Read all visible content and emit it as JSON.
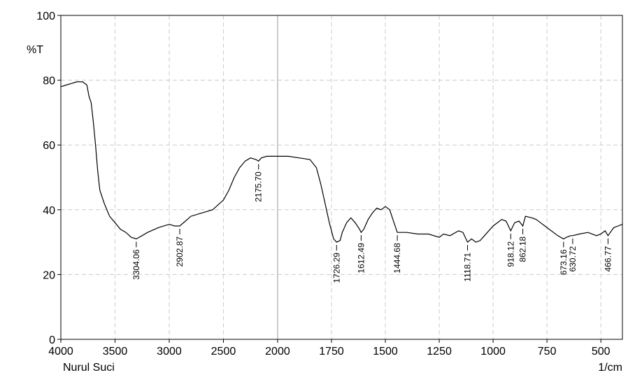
{
  "chart_data": {
    "type": "line",
    "y_label": "%T",
    "x_label": "1/cm",
    "author": "Nurul Suci",
    "xlim": [
      4000,
      400
    ],
    "x_break": 2000,
    "xticks": [
      4000,
      3500,
      3000,
      2500,
      2000,
      1750,
      1500,
      1250,
      1000,
      750,
      500
    ],
    "ylim": [
      0,
      100
    ],
    "yticks": [
      0,
      20,
      40,
      60,
      80,
      100
    ],
    "grid": true,
    "x": [
      4000,
      3950,
      3900,
      3850,
      3800,
      3760,
      3740,
      3720,
      3700,
      3680,
      3660,
      3640,
      3600,
      3550,
      3500,
      3450,
      3400,
      3350,
      3304.06,
      3250,
      3200,
      3100,
      3000,
      2950,
      2902.87,
      2850,
      2800,
      2700,
      2600,
      2500,
      2450,
      2400,
      2350,
      2300,
      2250,
      2200,
      2175.7,
      2150,
      2100,
      2000,
      1950,
      1900,
      1850,
      1820,
      1800,
      1780,
      1760,
      1740,
      1726.29,
      1710,
      1700,
      1680,
      1660,
      1640,
      1620,
      1612.49,
      1600,
      1580,
      1560,
      1540,
      1520,
      1500,
      1480,
      1460,
      1444.68,
      1430,
      1400,
      1350,
      1300,
      1250,
      1230,
      1200,
      1160,
      1140,
      1118.71,
      1100,
      1080,
      1060,
      1040,
      1000,
      960,
      940,
      918.12,
      900,
      880,
      862.18,
      850,
      820,
      800,
      780,
      760,
      740,
      700,
      673.16,
      660,
      640,
      630.72,
      600,
      560,
      520,
      500,
      480,
      466.77,
      440,
      420,
      400
    ],
    "series": [
      {
        "color": "#000000",
        "values": [
          78,
          78.5,
          79,
          79.5,
          79.5,
          78.5,
          75,
          73,
          67,
          60,
          52,
          46,
          42,
          38,
          36,
          34,
          33,
          31.5,
          31,
          32,
          33,
          34.5,
          35.5,
          35,
          35,
          36.5,
          38,
          39,
          40,
          43,
          46,
          50,
          53,
          55,
          56,
          55.5,
          55,
          56,
          56.5,
          56.5,
          56.5,
          56,
          55.5,
          53,
          48,
          42,
          36,
          31,
          30,
          30.5,
          33,
          36,
          37.5,
          36,
          34,
          33,
          34,
          37,
          39,
          40.5,
          40,
          41,
          40,
          36,
          33,
          33,
          33,
          32.5,
          32.5,
          31.5,
          32.5,
          32,
          33.5,
          33,
          30,
          31,
          30,
          30.5,
          32,
          35,
          37,
          36.5,
          33.5,
          36,
          36.5,
          35,
          38,
          37.5,
          37,
          36,
          35,
          34,
          32,
          31,
          31.5,
          32,
          32,
          32.5,
          33,
          32,
          32.5,
          33.5,
          32,
          34.5,
          35,
          35.5
        ]
      }
    ],
    "peaks": {
      "x": [
        3304.06,
        2902.87,
        {
          "value": 2175.7,
          "label": "2175.70"
        },
        1726.29,
        1612.49,
        1444.68,
        1118.71,
        918.12,
        862.18,
        673.16,
        630.72,
        466.77
      ],
      "y": [
        31,
        35,
        55,
        30,
        33,
        33,
        30,
        33.5,
        35,
        31,
        32,
        32
      ]
    }
  }
}
